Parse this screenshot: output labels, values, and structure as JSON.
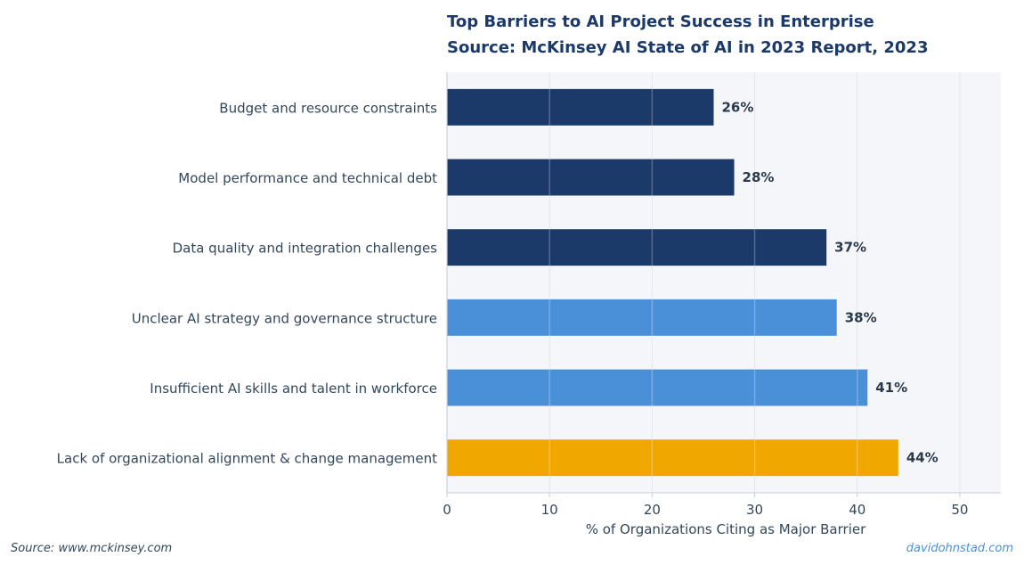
{
  "chart_data": {
    "type": "bar",
    "orientation": "horizontal",
    "title": [
      "Top Barriers to AI Project Success in Enterprise",
      "Source: McKinsey AI State of AI in 2023 Report, 2023"
    ],
    "xlabel": "% of Organizations Citing as Major Barrier",
    "ylabel": "",
    "xlim": [
      0,
      54
    ],
    "xticks": [
      0,
      10,
      20,
      30,
      40,
      50
    ],
    "grid": "vertical",
    "categories": [
      "Budget and resource constraints",
      "Model performance and technical debt",
      "Data quality and integration challenges",
      "Unclear AI strategy and governance structure",
      "Insufficient AI skills and talent in workforce",
      "Lack of organizational alignment & change management"
    ],
    "values": [
      26,
      28,
      37,
      38,
      41,
      44
    ],
    "value_labels": [
      "26%",
      "28%",
      "37%",
      "38%",
      "41%",
      "44%"
    ],
    "bar_colors": [
      "#1b3a69",
      "#1b3a69",
      "#1b3a69",
      "#4a90d9",
      "#4a90d9",
      "#f0a800"
    ]
  },
  "footer": {
    "source": "Source: www.mckinsey.com",
    "credit": "davidohnstad.com"
  },
  "colors": {
    "plot_background": "#f4f6fa",
    "grid": "#dde2ea",
    "axis": "#c8ced8"
  }
}
